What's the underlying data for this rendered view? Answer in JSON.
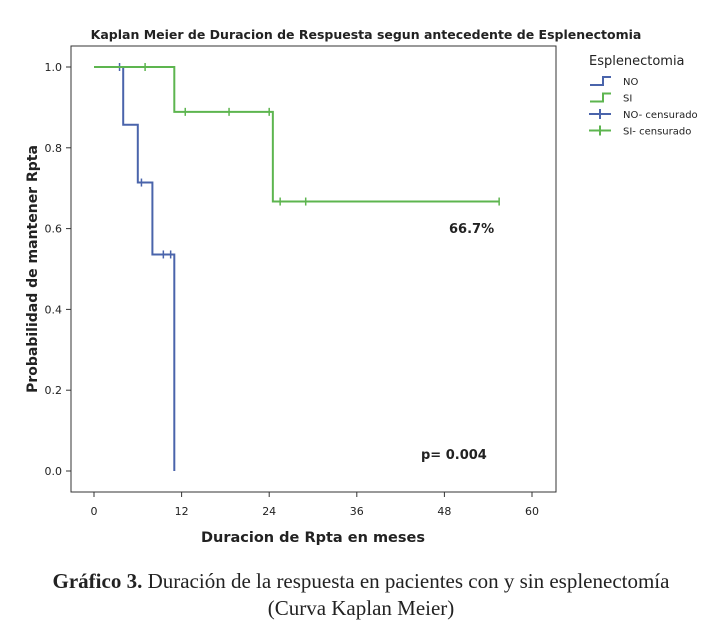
{
  "chart_data": {
    "type": "line",
    "title": "Kaplan Meier de Duracion de Respuesta segun antecedente de Esplenectomia",
    "xlabel": "Duracion de Rpta en meses",
    "ylabel": "Probabilidad de mantener Rpta",
    "xlim": [
      0,
      60
    ],
    "ylim": [
      0,
      1
    ],
    "x_ticks": [
      "0",
      "12",
      "24",
      "36",
      "48",
      "60"
    ],
    "x_tick_values": [
      0,
      12,
      24,
      36,
      48,
      60
    ],
    "y_ticks": [
      "0.0",
      "0.2",
      "0.4",
      "0.6",
      "0.8",
      "1.0"
    ],
    "y_tick_values": [
      0,
      0.2,
      0.4,
      0.6,
      0.8,
      1.0
    ],
    "grid": false,
    "legend_title": "Esplenectomia",
    "legend_position": "top-right",
    "legend": [
      {
        "label": "NO",
        "color": "#4a64ab",
        "marker": "step"
      },
      {
        "label": "SI",
        "color": "#5db54f",
        "marker": "step"
      },
      {
        "label": "NO- censurado",
        "color": "#4a64ab",
        "marker": "cross"
      },
      {
        "label": "SI- censurado",
        "color": "#5db54f",
        "marker": "cross"
      }
    ],
    "series": [
      {
        "name": "NO",
        "color": "#4a64ab",
        "steps": [
          [
            0,
            1.0
          ],
          [
            4,
            0.857
          ],
          [
            6,
            0.714
          ],
          [
            8,
            0.536
          ],
          [
            11,
            0.0
          ]
        ],
        "censored": [
          [
            3.5,
            1.0
          ],
          [
            6.5,
            0.714
          ],
          [
            9.5,
            0.536
          ],
          [
            10.5,
            0.536
          ]
        ]
      },
      {
        "name": "SI",
        "color": "#5db54f",
        "steps": [
          [
            0,
            1.0
          ],
          [
            11,
            0.889
          ],
          [
            24.5,
            0.667
          ],
          [
            55.5,
            0.667
          ]
        ],
        "censored": [
          [
            7,
            1.0
          ],
          [
            12.5,
            0.889
          ],
          [
            18.5,
            0.889
          ],
          [
            24,
            0.889
          ],
          [
            25.5,
            0.667
          ],
          [
            29,
            0.667
          ],
          [
            55.5,
            0.667
          ]
        ]
      }
    ],
    "annotations": [
      "66.7%",
      "p= 0.004"
    ]
  },
  "caption": {
    "bold": "Gráfico 3.",
    "text": " Duración de la respuesta en pacientes con y sin esplenectomía (Curva Kaplan Meier)"
  }
}
